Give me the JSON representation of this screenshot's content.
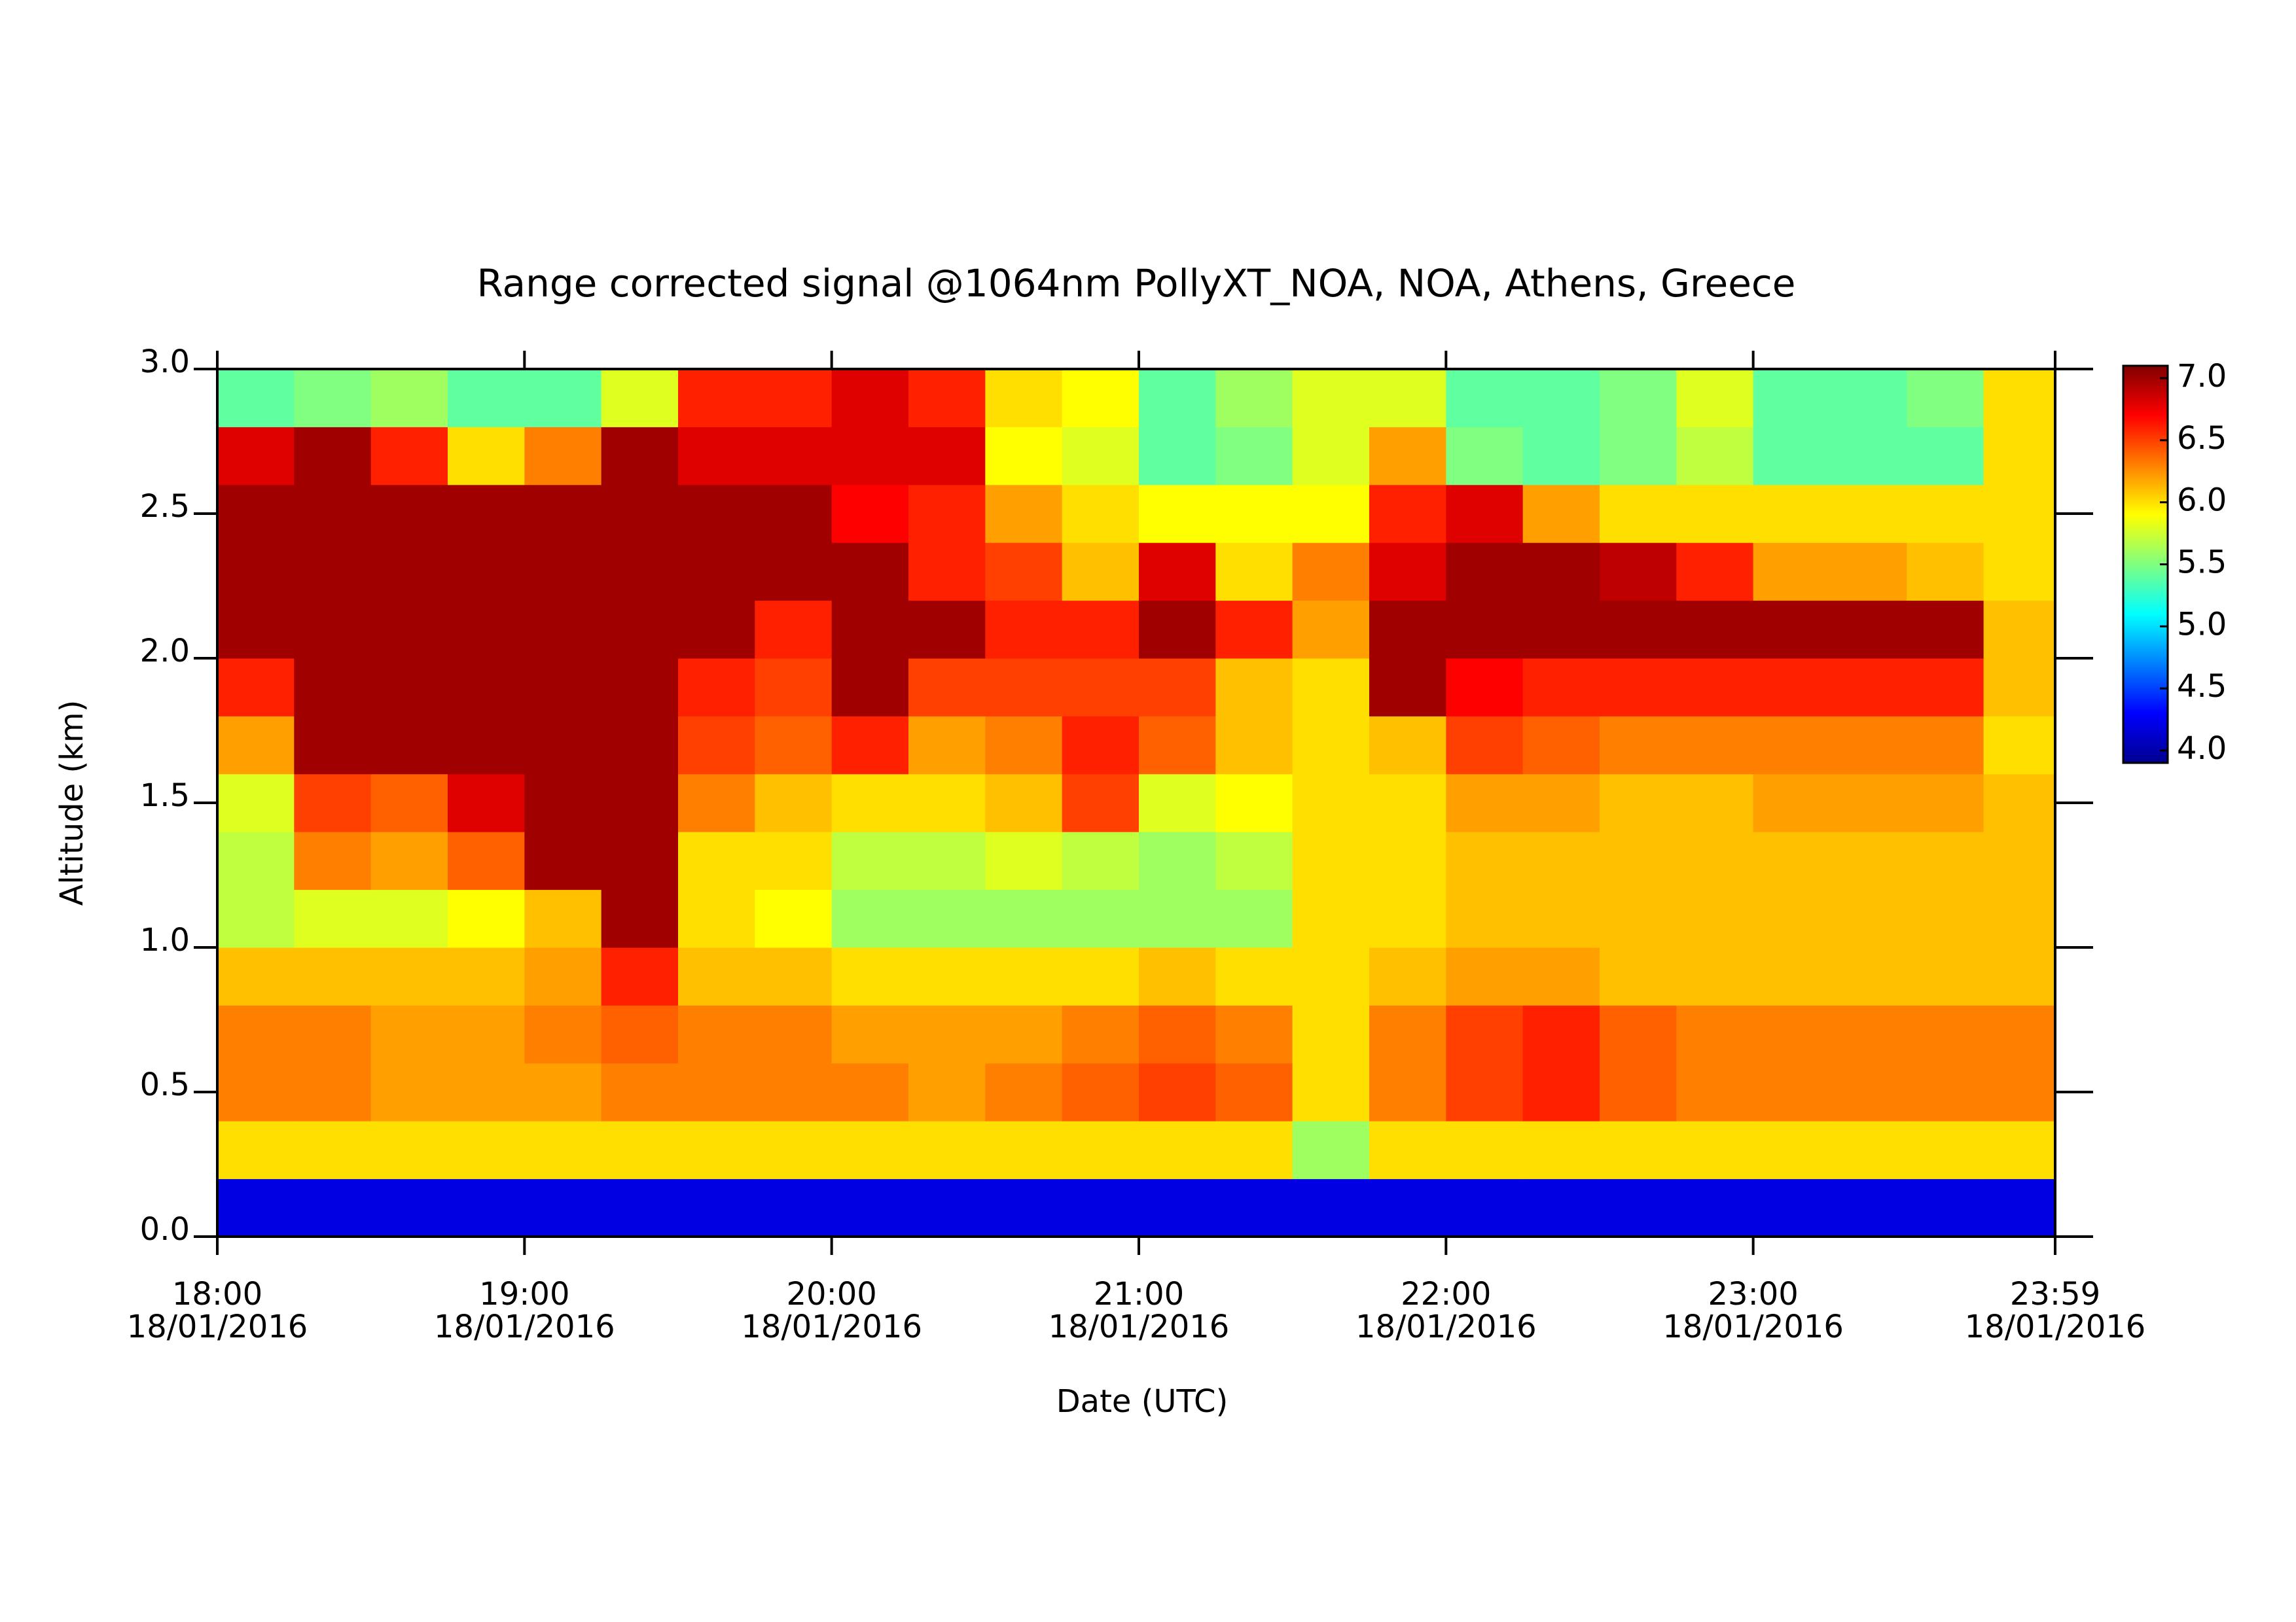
{
  "chart_data": {
    "type": "heatmap",
    "title": "Range corrected signal @1064nm  PollyXT_NOA, NOA, Athens, Greece",
    "x_label": "Date (UTC)",
    "y_label": "Altitude (km)",
    "x": [
      18.125,
      18.375,
      18.625,
      18.875,
      19.125,
      19.375,
      19.625,
      19.875,
      20.125,
      20.375,
      20.625,
      20.875,
      21.125,
      21.375,
      21.625,
      21.875,
      22.125,
      22.375,
      22.625,
      22.875,
      23.125,
      23.375,
      23.625,
      23.875
    ],
    "y": [
      0.1,
      0.3,
      0.5,
      0.7,
      0.9,
      1.1,
      1.3,
      1.5,
      1.7,
      1.9,
      2.1,
      2.3,
      2.5,
      2.7,
      2.9
    ],
    "values": [
      [
        4.2,
        4.2,
        4.2,
        4.2,
        4.2,
        4.2,
        4.2,
        4.2,
        4.2,
        4.2,
        4.2,
        4.2,
        4.2,
        4.2,
        4.2,
        4.2,
        4.2,
        4.2,
        4.2,
        4.2,
        4.2,
        4.2,
        4.2,
        4.2
      ],
      [
        6.0,
        6.0,
        6.0,
        6.0,
        6.0,
        6.0,
        6.0,
        6.0,
        6.0,
        6.0,
        6.0,
        6.0,
        6.0,
        6.0,
        5.6,
        6.0,
        6.0,
        6.0,
        6.0,
        6.0,
        6.0,
        6.0,
        6.0,
        6.0
      ],
      [
        6.3,
        6.3,
        6.2,
        6.2,
        6.2,
        6.3,
        6.3,
        6.3,
        6.3,
        6.2,
        6.3,
        6.4,
        6.5,
        6.4,
        6.0,
        6.3,
        6.5,
        6.6,
        6.4,
        6.3,
        6.3,
        6.3,
        6.3,
        6.3
      ],
      [
        6.3,
        6.3,
        6.2,
        6.2,
        6.3,
        6.4,
        6.3,
        6.3,
        6.2,
        6.2,
        6.2,
        6.3,
        6.4,
        6.3,
        6.0,
        6.3,
        6.5,
        6.6,
        6.4,
        6.3,
        6.3,
        6.3,
        6.3,
        6.3
      ],
      [
        6.1,
        6.1,
        6.1,
        6.1,
        6.2,
        6.6,
        6.1,
        6.1,
        6.0,
        6.0,
        6.0,
        6.0,
        6.1,
        6.0,
        6.0,
        6.1,
        6.2,
        6.2,
        6.1,
        6.1,
        6.1,
        6.1,
        6.1,
        6.1
      ],
      [
        5.7,
        5.8,
        5.8,
        5.9,
        6.1,
        7.0,
        6.0,
        5.9,
        5.6,
        5.6,
        5.6,
        5.6,
        5.6,
        5.6,
        6.0,
        6.0,
        6.1,
        6.1,
        6.1,
        6.1,
        6.1,
        6.1,
        6.1,
        6.1
      ],
      [
        5.7,
        6.3,
        6.2,
        6.4,
        7.0,
        7.0,
        6.0,
        6.0,
        5.7,
        5.7,
        5.8,
        5.7,
        5.6,
        5.7,
        6.0,
        6.0,
        6.1,
        6.1,
        6.1,
        6.1,
        6.1,
        6.1,
        6.1,
        6.1
      ],
      [
        5.8,
        6.5,
        6.4,
        6.8,
        7.0,
        7.0,
        6.3,
        6.1,
        6.0,
        6.0,
        6.1,
        6.5,
        5.8,
        5.9,
        6.0,
        6.0,
        6.2,
        6.2,
        6.1,
        6.1,
        6.2,
        6.2,
        6.2,
        6.1
      ],
      [
        6.2,
        7.0,
        7.0,
        7.0,
        7.0,
        7.0,
        6.5,
        6.4,
        6.6,
        6.2,
        6.3,
        6.6,
        6.4,
        6.1,
        6.0,
        6.1,
        6.5,
        6.4,
        6.3,
        6.3,
        6.3,
        6.3,
        6.3,
        6.0
      ],
      [
        6.6,
        7.0,
        7.0,
        7.0,
        7.0,
        7.0,
        6.6,
        6.5,
        7.0,
        6.5,
        6.5,
        6.5,
        6.5,
        6.1,
        6.0,
        7.0,
        6.7,
        6.6,
        6.6,
        6.6,
        6.6,
        6.6,
        6.6,
        6.1
      ],
      [
        7.0,
        7.0,
        7.0,
        7.0,
        7.0,
        7.0,
        7.0,
        6.6,
        7.0,
        7.0,
        6.6,
        6.6,
        7.0,
        6.6,
        6.2,
        7.0,
        7.0,
        7.0,
        7.0,
        7.0,
        7.0,
        7.0,
        7.0,
        6.1
      ],
      [
        7.0,
        7.0,
        7.0,
        7.0,
        7.0,
        7.0,
        7.0,
        7.0,
        7.0,
        6.6,
        6.5,
        6.1,
        6.8,
        6.0,
        6.3,
        6.8,
        7.0,
        7.0,
        6.9,
        6.6,
        6.2,
        6.2,
        6.1,
        6.0
      ],
      [
        7.0,
        7.0,
        7.0,
        7.0,
        7.0,
        7.0,
        7.0,
        7.0,
        6.7,
        6.6,
        6.2,
        6.0,
        5.9,
        5.9,
        5.9,
        6.6,
        6.8,
        6.2,
        6.0,
        6.0,
        6.0,
        6.0,
        6.0,
        6.0
      ],
      [
        6.8,
        7.0,
        6.6,
        6.0,
        6.3,
        7.0,
        6.8,
        6.8,
        6.8,
        6.8,
        5.9,
        5.8,
        5.4,
        5.5,
        5.8,
        6.2,
        5.5,
        5.4,
        5.5,
        5.7,
        5.4,
        5.4,
        5.4,
        6.0
      ],
      [
        5.4,
        5.5,
        5.6,
        5.4,
        5.4,
        5.8,
        6.6,
        6.6,
        6.8,
        6.6,
        6.0,
        5.9,
        5.4,
        5.6,
        5.8,
        5.8,
        5.4,
        5.4,
        5.5,
        5.8,
        5.4,
        5.4,
        5.5,
        6.0
      ]
    ],
    "xlim": [
      18,
      23.983
    ],
    "ylim": [
      0,
      3
    ],
    "zlim": [
      3.9,
      7.1
    ],
    "xticks": [
      {
        "value": 18,
        "label": "18:00\n18/01/2016"
      },
      {
        "value": 19,
        "label": "19:00\n18/01/2016"
      },
      {
        "value": 20,
        "label": "20:00\n18/01/2016"
      },
      {
        "value": 21,
        "label": "21:00\n18/01/2016"
      },
      {
        "value": 22,
        "label": "22:00\n18/01/2016"
      },
      {
        "value": 23,
        "label": "23:00\n18/01/2016"
      },
      {
        "value": 23.983,
        "label": "23:59\n18/01/2016"
      }
    ],
    "yticks": [
      {
        "value": 0,
        "label": "0.0"
      },
      {
        "value": 0.5,
        "label": "0.5"
      },
      {
        "value": 1,
        "label": "1.0"
      },
      {
        "value": 1.5,
        "label": "1.5"
      },
      {
        "value": 2,
        "label": "2.0"
      },
      {
        "value": 2.5,
        "label": "2.5"
      },
      {
        "value": 3,
        "label": "3.0"
      }
    ],
    "zticks": [
      {
        "value": 4,
        "label": "4.0"
      },
      {
        "value": 4.5,
        "label": "4.5"
      },
      {
        "value": 5,
        "label": "5.0"
      },
      {
        "value": 5.5,
        "label": "5.5"
      },
      {
        "value": 6,
        "label": "6.0"
      },
      {
        "value": 6.5,
        "label": "6.5"
      },
      {
        "value": 7,
        "label": "7.0"
      }
    ],
    "colormap": [
      "#00008f",
      "#0000ff",
      "#0080ff",
      "#00ffff",
      "#80ff80",
      "#ffff00",
      "#ff8000",
      "#ff0000",
      "#800000"
    ]
  }
}
